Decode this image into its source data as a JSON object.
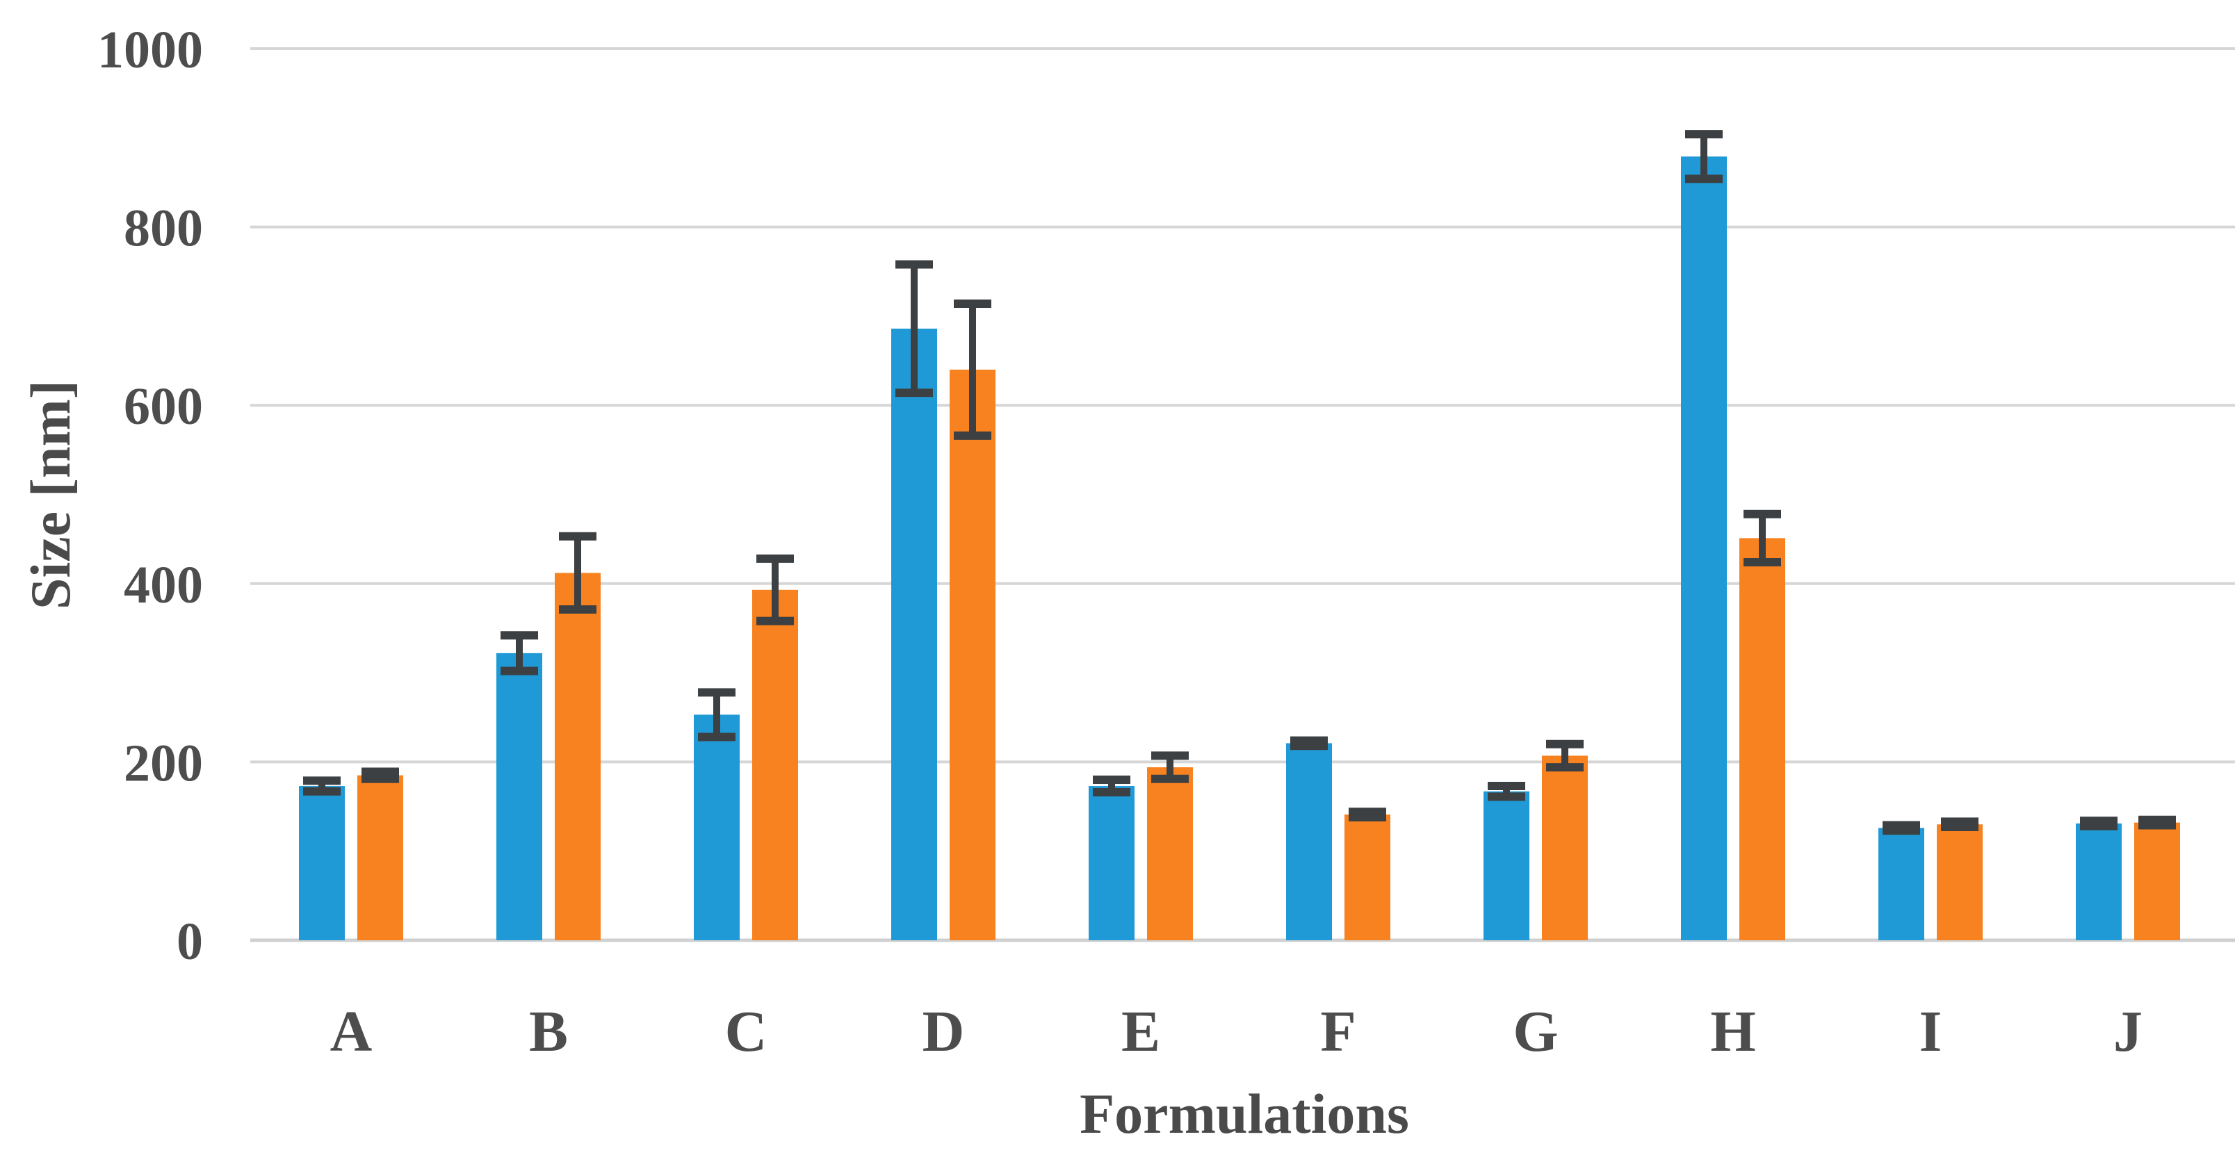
{
  "page": {
    "background_color": "#ffffff"
  },
  "chart_data": {
    "type": "bar",
    "title": "",
    "xlabel": "Formulations",
    "ylabel": "Size [nm]",
    "ylim": [
      0,
      1000
    ],
    "yticks": [
      0,
      200,
      400,
      600,
      800,
      1000
    ],
    "grid": "horizontal-only",
    "legend_position": "none",
    "categories": [
      "A",
      "B",
      "C",
      "D",
      "E",
      "F",
      "G",
      "H",
      "I",
      "J"
    ],
    "series": [
      {
        "name": "series-blue",
        "color": "#1f9ad6",
        "values": [
          173,
          322,
          253,
          686,
          173,
          221,
          167,
          879,
          126,
          131
        ],
        "errors": [
          6,
          20,
          25,
          72,
          7,
          3,
          6,
          25,
          3,
          3
        ]
      },
      {
        "name": "series-orange",
        "color": "#f8821f",
        "values": [
          185,
          412,
          393,
          640,
          194,
          141,
          207,
          451,
          130,
          132
        ],
        "errors": [
          4,
          41,
          35,
          74,
          13,
          3,
          13,
          27,
          3,
          3
        ]
      }
    ],
    "error_bar_color": "#3d4043",
    "gridline_color": "#d6d6d6",
    "baseline_color": "#d0d0d0",
    "axis_text_color": "#4d4d4d"
  }
}
